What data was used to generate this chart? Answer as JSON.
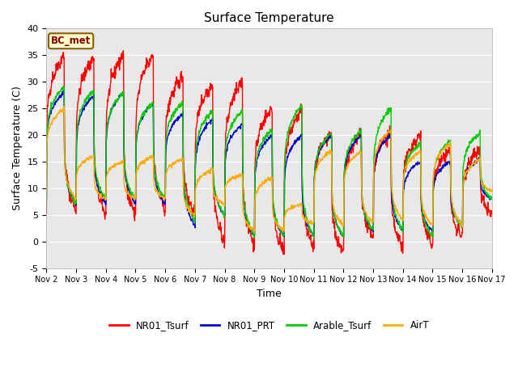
{
  "title": "Surface Temperature",
  "xlabel": "Time",
  "ylabel": "Surface Temperature (C)",
  "ylim": [
    -5,
    40
  ],
  "annotation": "BC_met",
  "bg_color": "#e8e8e8",
  "line_colors": {
    "NR01_Tsurf": "#ff0000",
    "NR01_PRT": "#0000cc",
    "Arable_Tsurf": "#00cc00",
    "AirT": "#ffaa00"
  },
  "legend_labels": [
    "NR01_Tsurf",
    "NR01_PRT",
    "Arable_Tsurf",
    "AirT"
  ],
  "xtick_labels": [
    "Nov 2",
    "Nov 3",
    "Nov 4",
    "Nov 5",
    "Nov 6",
    "Nov 7",
    "Nov 8",
    "Nov 9",
    "Nov 10",
    "Nov 11",
    "Nov 12",
    "Nov 13",
    "Nov 14",
    "Nov 15",
    "Nov 16",
    "Nov 17"
  ],
  "ytick_vals": [
    -5,
    0,
    5,
    10,
    15,
    20,
    25,
    30,
    35,
    40
  ],
  "n_days": 15,
  "pts_per_day": 96
}
